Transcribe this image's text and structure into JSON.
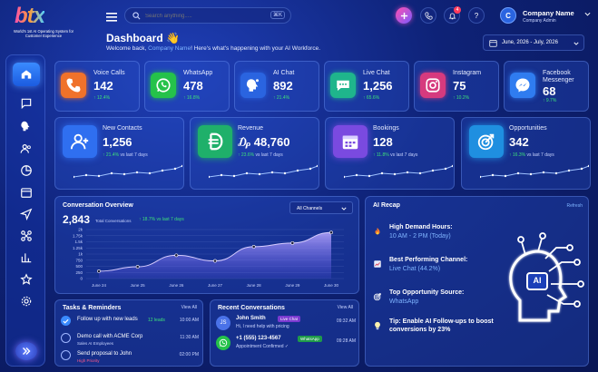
{
  "brand": {
    "logo_text": "btx",
    "tagline": "World's 1st AI Operating System for Customer Experience"
  },
  "topbar": {
    "search_placeholder": "Search anything.....",
    "search_shortcut": "⌘K",
    "notification_count": "4",
    "help_label": "?",
    "company_initial": "C",
    "company_name": "Company Name",
    "company_role": "Company Admin"
  },
  "header": {
    "title": "Dashboard 👋",
    "welcome_prefix": "Welcome back, ",
    "welcome_company": "Company Name",
    "welcome_suffix": "! Here's what's happening with your AI Workforce.",
    "date_range": "June, 2026 - July, 2026"
  },
  "kpis": [
    {
      "label": "Voice Calls",
      "value": "142",
      "delta": "↑ 12.4%",
      "icon": "phone-icon",
      "color": "#f0722a"
    },
    {
      "label": "WhatsApp",
      "value": "478",
      "delta": "↑ 16.8%",
      "icon": "whatsapp-icon",
      "color": "#25c24a"
    },
    {
      "label": "AI Chat",
      "value": "892",
      "delta": "↑ 21.4%",
      "icon": "ai-chat-icon",
      "color": "#2a64e0"
    },
    {
      "label": "Live Chat",
      "value": "1,256",
      "delta": "↑ 65.6%",
      "icon": "live-chat-icon",
      "color": "#1fb58c"
    },
    {
      "label": "Instagram",
      "value": "75",
      "delta": "↑ 10.2%",
      "icon": "instagram-icon",
      "color": "#d63a7e"
    },
    {
      "label": "Facebook Messenger",
      "value": "68",
      "delta": "↑ 9.7%",
      "icon": "messenger-icon",
      "color": "#2f7cf0"
    }
  ],
  "metrics": [
    {
      "label": "New Contacts",
      "value": "1,256",
      "delta": "↑ 21.4%",
      "vs": "vs last 7 days",
      "icon": "add-user-icon",
      "color": "#2f6ff0"
    },
    {
      "label": "Revenue",
      "value": "₯ 48,760",
      "delta": "↑ 23.6%",
      "vs": "vs last 7 days",
      "icon": "currency-icon",
      "color": "#1fb06a"
    },
    {
      "label": "Bookings",
      "value": "128",
      "delta": "↑ 11.8%",
      "vs": "vs last 7 days",
      "icon": "calendar-icon",
      "color": "#7a4ae0"
    },
    {
      "label": "Opportunities",
      "value": "342",
      "delta": "↑ 16.3%",
      "vs": "vs last 7 days",
      "icon": "target-icon",
      "color": "#1f8fe0"
    }
  ],
  "overview": {
    "title": "Conversation Overview",
    "total": "2,843",
    "total_label": "Total Conversations",
    "delta": "↑ 18.7% vs last 7 days",
    "filter": "All Channels"
  },
  "chart_data": {
    "type": "area",
    "categories": [
      "June 24",
      "June 25",
      "June 26",
      "June 27",
      "June 28",
      "June 29",
      "June 30"
    ],
    "values": [
      300,
      480,
      950,
      720,
      1300,
      1450,
      1880
    ],
    "x_ticks": [
      "June 24",
      "June 25",
      "June 26",
      "June 27",
      "June 28",
      "June 29",
      "June 30"
    ],
    "y_ticks": [
      "0",
      "250",
      "500",
      "750",
      "1k",
      "1.25k",
      "1.5k",
      "1.75k",
      "2k"
    ],
    "ylim": [
      0,
      2000
    ],
    "grid": true
  },
  "recap": {
    "title": "AI Recap",
    "refresh": "Refresh",
    "items": [
      {
        "label": "High Demand Hours:",
        "value": "10 AM - 2 PM (Today)",
        "icon": "fire-icon"
      },
      {
        "label": "Best Performing Channel:",
        "value": "Live Chat (44.2%)",
        "icon": "chart-icon"
      },
      {
        "label": "Top Opportunity Source:",
        "value": "WhatsApp",
        "icon": "target-icon"
      },
      {
        "label": "Tip: Enable AI Follow-ups to boost conversions by 23%",
        "value": "",
        "icon": "bulb-icon"
      }
    ],
    "ai_badge": "AI"
  },
  "tasks": {
    "title": "Tasks & Reminders",
    "view_all": "View All",
    "items": [
      {
        "title": "Follow up with new leads",
        "meta": "12 leads",
        "time": "10:00 AM",
        "done": true
      },
      {
        "title": "Demo call with ACME Corp",
        "meta": "Sales AI Employees",
        "time": "11:30 AM",
        "done": false
      },
      {
        "title": "Send proposal to John",
        "meta": "High Priority",
        "time": "02:00 PM",
        "done": false
      }
    ]
  },
  "conversations": {
    "title": "Recent Conversations",
    "view_all": "View All",
    "items": [
      {
        "avatar": "JS",
        "name": "John Smith",
        "tag": "Live Chat",
        "message": "Hi, I need help with pricing",
        "time": "09:32 AM"
      },
      {
        "avatar": "",
        "name": "+1 (555) 123-4567",
        "tag": "WhatsApp",
        "message": "Appointment Confirmed ✓",
        "time": "09:28 AM"
      }
    ]
  }
}
